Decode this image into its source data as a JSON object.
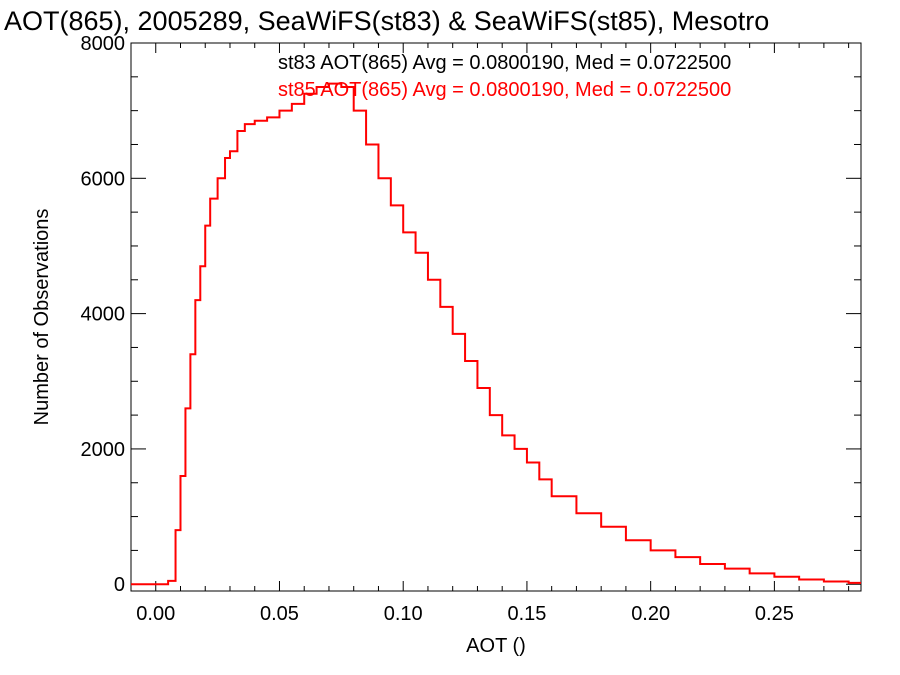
{
  "chart_data": {
    "type": "line",
    "title": "AOT(865), 2005289, SeaWiFS(st83) & SeaWiFS(st85), Mesotro",
    "xlabel": "AOT ()",
    "ylabel": "Number of Observations",
    "xlim": [
      -0.01,
      0.285
    ],
    "ylim": [
      -100,
      8000
    ],
    "xticks": [
      0.0,
      0.05,
      0.1,
      0.15,
      0.2,
      0.25
    ],
    "xtick_labels": [
      "0.00",
      "0.05",
      "0.10",
      "0.15",
      "0.20",
      "0.25"
    ],
    "yticks": [
      0,
      2000,
      4000,
      6000,
      8000
    ],
    "ytick_labels": [
      "0",
      "2000",
      "4000",
      "6000",
      "8000"
    ],
    "grid": false,
    "annotations": [
      {
        "text": "st83 AOT(865) Avg = 0.0800190, Med = 0.0722500",
        "color": "#000000"
      },
      {
        "text": "st85 AOT(865) Avg = 0.0800190, Med = 0.0722500",
        "color": "#ff0000"
      }
    ],
    "series": [
      {
        "color": "#ff0000",
        "step": true,
        "x": [
          -0.01,
          0.0,
          0.005,
          0.008,
          0.01,
          0.012,
          0.014,
          0.016,
          0.018,
          0.02,
          0.022,
          0.025,
          0.028,
          0.03,
          0.033,
          0.036,
          0.04,
          0.045,
          0.05,
          0.055,
          0.06,
          0.065,
          0.07,
          0.075,
          0.08,
          0.085,
          0.09,
          0.095,
          0.1,
          0.105,
          0.11,
          0.115,
          0.12,
          0.125,
          0.13,
          0.135,
          0.14,
          0.145,
          0.15,
          0.155,
          0.16,
          0.17,
          0.18,
          0.19,
          0.2,
          0.21,
          0.22,
          0.23,
          0.24,
          0.25,
          0.26,
          0.27,
          0.28,
          0.285
        ],
        "y": [
          0,
          0,
          50,
          800,
          1600,
          2600,
          3400,
          4200,
          4700,
          5300,
          5700,
          6000,
          6300,
          6400,
          6700,
          6800,
          6850,
          6900,
          7000,
          7100,
          7250,
          7350,
          7400,
          7350,
          7000,
          6500,
          6000,
          5600,
          5200,
          4900,
          4500,
          4100,
          3700,
          3300,
          2900,
          2500,
          2200,
          2000,
          1800,
          1550,
          1300,
          1050,
          850,
          650,
          500,
          400,
          300,
          230,
          160,
          110,
          70,
          40,
          20,
          20
        ]
      }
    ]
  }
}
